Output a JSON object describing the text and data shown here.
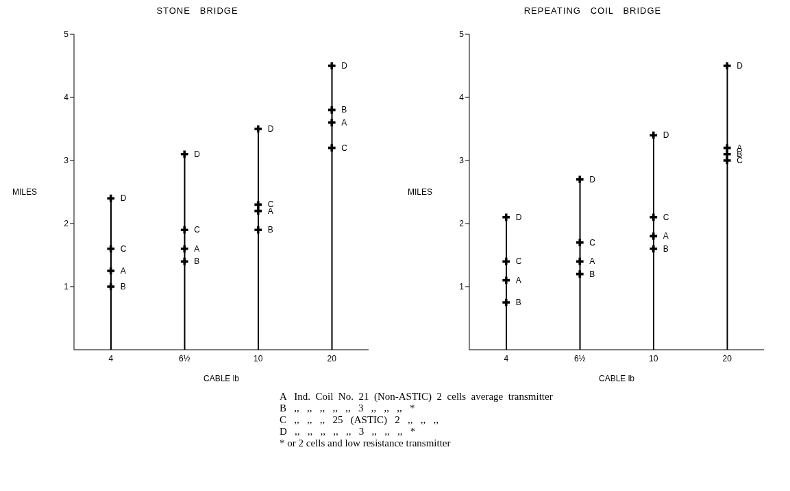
{
  "chart_data": [
    {
      "type": "scatter",
      "title": "STONE   BRIDGE",
      "xlabel": "CABLE lb",
      "ylabel": "MILES",
      "categories": [
        "4",
        "6½",
        "10",
        "20"
      ],
      "ylim": [
        0,
        5
      ],
      "yticks": [
        1,
        2,
        3,
        4,
        5
      ],
      "grid": false,
      "marker": "cross",
      "series": [
        {
          "name": "A",
          "color": "#000000",
          "values": [
            1.25,
            1.6,
            2.2,
            3.6
          ]
        },
        {
          "name": "B",
          "color": "#000000",
          "values": [
            1.0,
            1.4,
            1.9,
            3.8
          ]
        },
        {
          "name": "C",
          "color": "#000000",
          "values": [
            1.6,
            1.9,
            2.3,
            3.2
          ]
        },
        {
          "name": "D",
          "type": "lollipop",
          "color": "#000000",
          "values": [
            2.4,
            3.1,
            3.5,
            4.5
          ]
        }
      ],
      "annotations": [
        "A   Ind.  Coil  No.  21  (Non-ASTIC)  2  cells  average  transmitter",
        "B   ,,   ,,   ,,   ,,   ,,   3   ,,   ,,   ,,   *",
        "C   ,,   ,,   ,,   25   (ASTIC)   2   ,,   ,,   ,,",
        "D   ,,   ,,   ,,   ,,   ,,   3   ,,   ,,   ,,   *",
        "* or 2 cells and low resistance transmitter"
      ]
    },
    {
      "type": "scatter",
      "title": "REPEATING   COIL   BRIDGE",
      "xlabel": "CABLE lb",
      "ylabel": "MILES",
      "categories": [
        "4",
        "6½",
        "10",
        "20"
      ],
      "ylim": [
        0,
        5
      ],
      "yticks": [
        1,
        2,
        3,
        4,
        5
      ],
      "grid": false,
      "marker": "cross",
      "series": [
        {
          "name": "A",
          "color": "#000000",
          "values": [
            1.1,
            1.4,
            1.8,
            3.2
          ]
        },
        {
          "name": "B",
          "color": "#000000",
          "values": [
            0.75,
            1.2,
            1.6,
            3.1
          ]
        },
        {
          "name": "C",
          "color": "#000000",
          "values": [
            1.4,
            1.7,
            2.1,
            3.0
          ]
        },
        {
          "name": "D",
          "type": "lollipop",
          "color": "#000000",
          "values": [
            2.1,
            2.7,
            3.4,
            4.5
          ]
        }
      ]
    }
  ]
}
